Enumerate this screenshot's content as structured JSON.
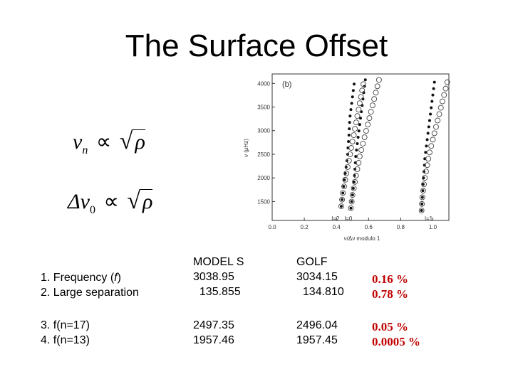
{
  "slide": {
    "title": "The Surface Offset"
  },
  "formulas": {
    "f1_lhs": "ν",
    "f1_sub": "n",
    "f2_lhs": "Δν",
    "f2_sub": "0",
    "prop": "∝",
    "rho": "ρ"
  },
  "chart_data": {
    "type": "scatter",
    "panel_label": "(b)",
    "xlabel": "ν/Δν modulo 1",
    "ylabel": "ν (μHz)",
    "xlim": [
      0.0,
      1.1
    ],
    "ylim": [
      1100,
      4200
    ],
    "x_ticks": [
      "0.0",
      "0.2",
      "0.4",
      "0.6",
      "0.8",
      "1.0"
    ],
    "y_ticks": [
      "1500",
      "2000",
      "2500",
      "3000",
      "3500",
      "4000"
    ],
    "annotations": [
      {
        "text": "l=2",
        "x": 0.37,
        "y": 1310
      },
      {
        "text": "l=0",
        "x": 0.45,
        "y": 1310
      },
      {
        "text": "l=1",
        "x": 0.95,
        "y": 1310
      }
    ],
    "series": [
      {
        "marker": "filled",
        "points": [
          [
            0.43,
            1400
          ],
          [
            0.435,
            1540
          ],
          [
            0.44,
            1680
          ],
          [
            0.445,
            1820
          ],
          [
            0.45,
            1960
          ],
          [
            0.455,
            2095
          ],
          [
            0.46,
            2230
          ],
          [
            0.465,
            2365
          ],
          [
            0.47,
            2500
          ],
          [
            0.472,
            2635
          ],
          [
            0.475,
            2770
          ],
          [
            0.478,
            2905
          ],
          [
            0.48,
            3040
          ],
          [
            0.482,
            3175
          ],
          [
            0.485,
            3310
          ],
          [
            0.49,
            3445
          ],
          [
            0.495,
            3580
          ],
          [
            0.5,
            3715
          ],
          [
            0.505,
            3850
          ],
          [
            0.51,
            3985
          ]
        ]
      },
      {
        "marker": "filled",
        "points": [
          [
            0.49,
            1360
          ],
          [
            0.495,
            1500
          ],
          [
            0.5,
            1640
          ],
          [
            0.505,
            1780
          ],
          [
            0.51,
            1915
          ],
          [
            0.512,
            2050
          ],
          [
            0.515,
            2185
          ],
          [
            0.518,
            2320
          ],
          [
            0.52,
            2455
          ],
          [
            0.525,
            2590
          ],
          [
            0.53,
            2725
          ],
          [
            0.535,
            2860
          ],
          [
            0.54,
            2995
          ],
          [
            0.545,
            3130
          ],
          [
            0.55,
            3265
          ],
          [
            0.555,
            3400
          ],
          [
            0.56,
            3535
          ],
          [
            0.565,
            3670
          ],
          [
            0.57,
            3805
          ],
          [
            0.575,
            3940
          ],
          [
            0.58,
            4075
          ]
        ]
      },
      {
        "marker": "filled",
        "points": [
          [
            0.93,
            1310
          ],
          [
            0.932,
            1450
          ],
          [
            0.935,
            1590
          ],
          [
            0.938,
            1730
          ],
          [
            0.94,
            1865
          ],
          [
            0.942,
            2000
          ],
          [
            0.945,
            2135
          ],
          [
            0.948,
            2270
          ],
          [
            0.95,
            2405
          ],
          [
            0.955,
            2540
          ],
          [
            0.96,
            2675
          ],
          [
            0.965,
            2810
          ],
          [
            0.97,
            2945
          ],
          [
            0.975,
            3080
          ],
          [
            0.98,
            3215
          ],
          [
            0.985,
            3350
          ],
          [
            0.99,
            3485
          ],
          [
            0.995,
            3620
          ],
          [
            1.0,
            3755
          ],
          [
            1.005,
            3890
          ],
          [
            1.01,
            4025
          ]
        ]
      },
      {
        "marker": "open",
        "points": [
          [
            0.43,
            1400
          ],
          [
            0.435,
            1540
          ],
          [
            0.44,
            1680
          ],
          [
            0.448,
            1820
          ],
          [
            0.455,
            1960
          ],
          [
            0.462,
            2095
          ],
          [
            0.47,
            2230
          ],
          [
            0.478,
            2365
          ],
          [
            0.485,
            2500
          ],
          [
            0.492,
            2635
          ],
          [
            0.5,
            2770
          ],
          [
            0.508,
            2905
          ],
          [
            0.515,
            3040
          ],
          [
            0.523,
            3175
          ],
          [
            0.53,
            3310
          ],
          [
            0.538,
            3445
          ],
          [
            0.545,
            3580
          ],
          [
            0.553,
            3715
          ],
          [
            0.56,
            3850
          ],
          [
            0.568,
            3985
          ]
        ]
      },
      {
        "marker": "open",
        "points": [
          [
            0.49,
            1360
          ],
          [
            0.495,
            1500
          ],
          [
            0.5,
            1640
          ],
          [
            0.508,
            1780
          ],
          [
            0.515,
            1915
          ],
          [
            0.522,
            2050
          ],
          [
            0.53,
            2185
          ],
          [
            0.538,
            2320
          ],
          [
            0.545,
            2455
          ],
          [
            0.555,
            2590
          ],
          [
            0.565,
            2725
          ],
          [
            0.575,
            2860
          ],
          [
            0.585,
            2995
          ],
          [
            0.595,
            3130
          ],
          [
            0.605,
            3265
          ],
          [
            0.615,
            3400
          ],
          [
            0.625,
            3535
          ],
          [
            0.635,
            3670
          ],
          [
            0.645,
            3805
          ],
          [
            0.655,
            3940
          ],
          [
            0.665,
            4075
          ]
        ]
      },
      {
        "marker": "open",
        "points": [
          [
            0.93,
            1310
          ],
          [
            0.932,
            1450
          ],
          [
            0.935,
            1590
          ],
          [
            0.94,
            1730
          ],
          [
            0.945,
            1865
          ],
          [
            0.95,
            2000
          ],
          [
            0.958,
            2135
          ],
          [
            0.965,
            2270
          ],
          [
            0.972,
            2405
          ],
          [
            0.98,
            2540
          ],
          [
            0.99,
            2675
          ],
          [
            1.0,
            2810
          ],
          [
            1.01,
            2945
          ],
          [
            1.02,
            3080
          ],
          [
            1.03,
            3215
          ],
          [
            1.04,
            3350
          ],
          [
            1.05,
            3485
          ],
          [
            1.06,
            3620
          ],
          [
            1.07,
            3755
          ],
          [
            1.08,
            3890
          ],
          [
            1.09,
            4025
          ]
        ]
      }
    ]
  },
  "table": {
    "rows1_label_a": "1. Frequency (",
    "rows1_label_f": "f",
    "rows1_label_b": ")",
    "rows2_label": "2. Large separation",
    "model_header": "MODEL S",
    "model_v1": "3038.95",
    "model_v2": "  135.855",
    "golf_header": "GOLF",
    "golf_v1": "3034.15",
    "golf_v2": "  134.810",
    "diff1": "0.16 %",
    "diff2": "0.78 %",
    "row3_label": "3. f(n=17)",
    "row4_label": "4. f(n=13)",
    "model_v3": "2497.35",
    "model_v4": "1957.46",
    "golf_v3": "2496.04",
    "golf_v4": "1957.45",
    "diff3": "0.05 %",
    "diff4": "0.0005 %"
  }
}
